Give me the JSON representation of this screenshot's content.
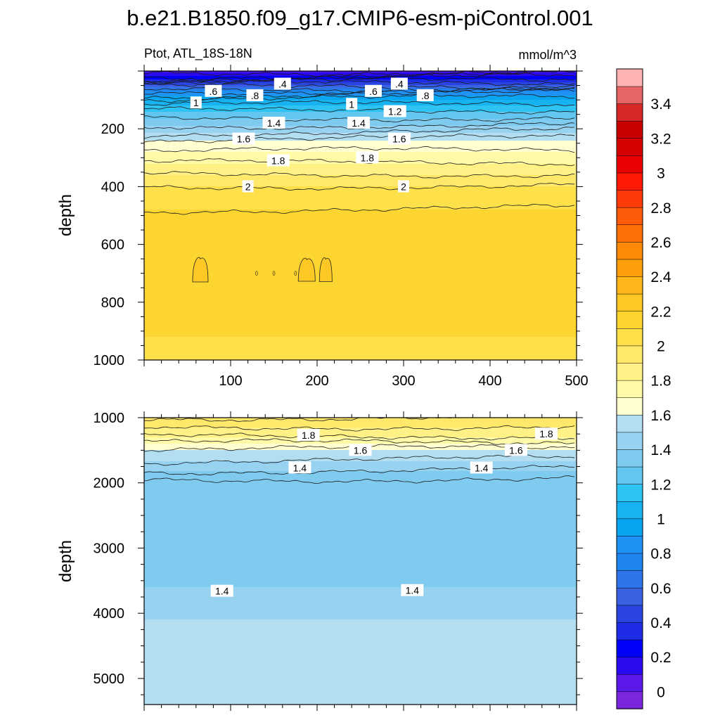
{
  "title": "b.e21.B1850.f09_g17.CMIP6-esm-piControl.001",
  "variable_label": "Ptot, ATL_18S-18N",
  "units": "mmol/m^3",
  "chart_data": [
    {
      "type": "heatmap",
      "panel": "upper",
      "xlabel": "",
      "ylabel": "depth",
      "xlim": [
        0,
        500
      ],
      "ylim": [
        1000,
        0
      ],
      "x_ticks": [
        100,
        200,
        300,
        400,
        500
      ],
      "y_ticks": [
        200,
        400,
        600,
        800,
        1000
      ],
      "contour_levels": [
        0.1,
        0.2,
        0.3,
        0.4,
        0.5,
        0.6,
        0.7,
        0.8,
        0.9,
        1.0,
        1.1,
        1.2,
        1.3,
        1.4,
        1.5,
        1.6,
        1.7,
        1.8,
        1.9,
        2.0,
        2.1,
        2.2
      ],
      "depth_profile": [
        {
          "depth": 0,
          "value": 0.05
        },
        {
          "depth": 40,
          "value": 0.4
        },
        {
          "depth": 70,
          "value": 0.8
        },
        {
          "depth": 100,
          "value": 1.0
        },
        {
          "depth": 140,
          "value": 1.2
        },
        {
          "depth": 190,
          "value": 1.4
        },
        {
          "depth": 240,
          "value": 1.6
        },
        {
          "depth": 320,
          "value": 1.8
        },
        {
          "depth": 400,
          "value": 2.0
        },
        {
          "depth": 480,
          "value": 2.1
        },
        {
          "depth": 600,
          "value": 2.15
        },
        {
          "depth": 700,
          "value": 2.15
        },
        {
          "depth": 920,
          "value": 2.1
        },
        {
          "depth": 1000,
          "value": 2.05
        }
      ],
      "contour_labels": [
        {
          "x": 160,
          "depth": 45,
          "text": ".4"
        },
        {
          "x": 295,
          "depth": 45,
          "text": ".4"
        },
        {
          "x": 80,
          "depth": 70,
          "text": ".6"
        },
        {
          "x": 265,
          "depth": 70,
          "text": ".6"
        },
        {
          "x": 128,
          "depth": 85,
          "text": ".8"
        },
        {
          "x": 325,
          "depth": 85,
          "text": ".8"
        },
        {
          "x": 60,
          "depth": 110,
          "text": "1"
        },
        {
          "x": 240,
          "depth": 115,
          "text": "1"
        },
        {
          "x": 290,
          "depth": 140,
          "text": "1.2"
        },
        {
          "x": 150,
          "depth": 180,
          "text": "1.4"
        },
        {
          "x": 248,
          "depth": 180,
          "text": "1.4"
        },
        {
          "x": 115,
          "depth": 235,
          "text": "1.6"
        },
        {
          "x": 295,
          "depth": 235,
          "text": "1.6"
        },
        {
          "x": 155,
          "depth": 310,
          "text": "1.8"
        },
        {
          "x": 258,
          "depth": 300,
          "text": "1.8"
        },
        {
          "x": 120,
          "depth": 400,
          "text": "2"
        },
        {
          "x": 300,
          "depth": 400,
          "text": "2"
        }
      ]
    },
    {
      "type": "heatmap",
      "panel": "lower",
      "xlabel": "",
      "ylabel": "depth",
      "xlim": [
        0,
        500
      ],
      "ylim": [
        5400,
        1000
      ],
      "x_ticks": [
        100,
        200,
        300,
        400,
        500
      ],
      "y_ticks": [
        1000,
        2000,
        3000,
        4000,
        5000
      ],
      "contour_levels": [
        1.3,
        1.4,
        1.5,
        1.6,
        1.7,
        1.8,
        1.9,
        2.0
      ],
      "depth_profile": [
        {
          "depth": 1000,
          "value": 2.0
        },
        {
          "depth": 1300,
          "value": 1.8
        },
        {
          "depth": 1500,
          "value": 1.6
        },
        {
          "depth": 1750,
          "value": 1.45
        },
        {
          "depth": 1950,
          "value": 1.3
        },
        {
          "depth": 3150,
          "value": 1.3
        },
        {
          "depth": 3600,
          "value": 1.4
        },
        {
          "depth": 4100,
          "value": 1.5
        },
        {
          "depth": 5400,
          "value": 1.55
        }
      ],
      "contour_labels": [
        {
          "x": 190,
          "depth": 1270,
          "text": "1.8"
        },
        {
          "x": 465,
          "depth": 1250,
          "text": "1.8"
        },
        {
          "x": 250,
          "depth": 1500,
          "text": "1.6"
        },
        {
          "x": 430,
          "depth": 1500,
          "text": "1.6"
        },
        {
          "x": 180,
          "depth": 1770,
          "text": "1.4"
        },
        {
          "x": 390,
          "depth": 1770,
          "text": "1.4"
        },
        {
          "x": 90,
          "depth": 3660,
          "text": "1.4"
        },
        {
          "x": 310,
          "depth": 3650,
          "text": "1.4"
        }
      ]
    }
  ],
  "colorbar": {
    "labels": [
      "0",
      "0.2",
      "0.4",
      "0.6",
      "0.8",
      "1",
      "1.2",
      "1.4",
      "1.6",
      "1.8",
      "2",
      "2.2",
      "2.4",
      "2.6",
      "2.8",
      "3",
      "3.2",
      "3.4"
    ],
    "colors": [
      "#7a26dc",
      "#5a19e9",
      "#2a0bf0",
      "#0000fa",
      "#1e2ce6",
      "#2a44e0",
      "#3b62e3",
      "#2f74ea",
      "#1f85f0",
      "#1e92f5",
      "#0aa5f0",
      "#16b3f0",
      "#2ec3f2",
      "#62c6f0",
      "#7ecbef",
      "#97d2f0",
      "#b3def2",
      "#ffffd0",
      "#fffaa8",
      "#fff186",
      "#ffe86a",
      "#fde04a",
      "#fcd530",
      "#fdc724",
      "#fcb61a",
      "#fc9f0a",
      "#fb8a08",
      "#fc7008",
      "#fd5a0a",
      "#fd3a0a",
      "#fe1a04",
      "#ea0000",
      "#d60202",
      "#c80000",
      "#d72828",
      "#e56464",
      "#ffb3b3"
    ]
  }
}
